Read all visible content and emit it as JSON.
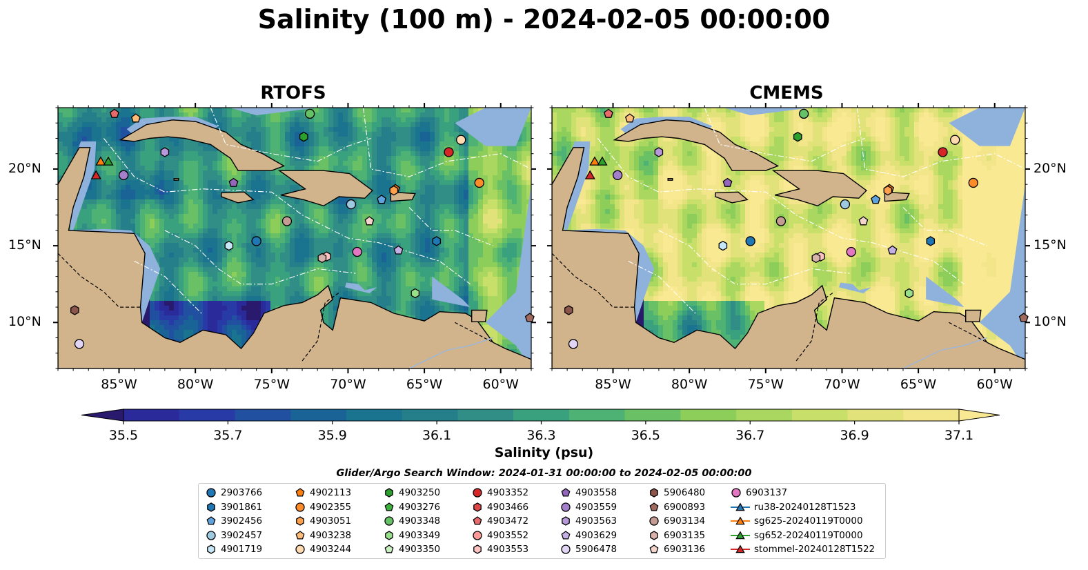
{
  "title": "Salinity (100 m) - 2024-02-05 00:00:00",
  "panels": [
    {
      "title": "RTOFS",
      "field": "rtofs"
    },
    {
      "title": "CMEMS",
      "field": "cmems"
    }
  ],
  "colors": {
    "land": "#d2b48c",
    "shelf": "#8fb2dd"
  },
  "chart_data": {
    "type": "heatmap",
    "lon_range": [
      -89.0,
      -58.0
    ],
    "lat_range": [
      7.0,
      24.0
    ],
    "x_ticks": [
      "85°W",
      "80°W",
      "75°W",
      "70°W",
      "65°W",
      "60°W"
    ],
    "x_tick_values": [
      -85,
      -80,
      -75,
      -70,
      -65,
      -60
    ],
    "y_ticks": [
      "20°N",
      "15°N",
      "10°N"
    ],
    "y_tick_values": [
      20,
      15,
      10
    ],
    "colorbar": {
      "label": "Salinity (psu)",
      "min": 35.5,
      "max": 37.1,
      "step": 0.1,
      "ticks": [
        "35.5",
        "35.7",
        "35.9",
        "36.1",
        "36.3",
        "36.5",
        "36.7",
        "36.9",
        "37.1"
      ],
      "colors": [
        "#2a1a6e",
        "#2b2a9a",
        "#283aa6",
        "#20509f",
        "#1a6396",
        "#1a748f",
        "#257f8a",
        "#308e86",
        "#3aa17f",
        "#4db273",
        "#6ac165",
        "#8dcd5a",
        "#aad75f",
        "#c8e06a",
        "#e1e37a",
        "#f3e58a",
        "#fae993"
      ]
    },
    "rtofs": {
      "mean_salinity": 36.2
    },
    "cmems": {
      "mean_salinity": 36.85
    }
  },
  "search_window": "Glider/Argo Search Window: 2024-01-31 00:00:00 to 2024-02-05 00:00:00",
  "legend": [
    {
      "label": "2903766",
      "color": "#1f77b4",
      "marker": "circle"
    },
    {
      "label": "3901861",
      "color": "#1f77b4",
      "marker": "hexagon"
    },
    {
      "label": "3902456",
      "color": "#5fa2dd",
      "marker": "pentagon"
    },
    {
      "label": "3902457",
      "color": "#9ecae1",
      "marker": "circle"
    },
    {
      "label": "4901719",
      "color": "#c6e7f7",
      "marker": "hexagon"
    },
    {
      "label": "4902113",
      "color": "#ff7f0e",
      "marker": "pentagon"
    },
    {
      "label": "4902355",
      "color": "#ff8c2a",
      "marker": "circle"
    },
    {
      "label": "4903051",
      "color": "#ffa04d",
      "marker": "hexagon"
    },
    {
      "label": "4903238",
      "color": "#ffbb78",
      "marker": "pentagon"
    },
    {
      "label": "4903244",
      "color": "#ffd9b0",
      "marker": "circle"
    },
    {
      "label": "4903250",
      "color": "#2ca02c",
      "marker": "hexagon"
    },
    {
      "label": "4903276",
      "color": "#3cb13c",
      "marker": "pentagon"
    },
    {
      "label": "4903348",
      "color": "#66c266",
      "marker": "circle"
    },
    {
      "label": "4903349",
      "color": "#98df8a",
      "marker": "hexagon"
    },
    {
      "label": "4903350",
      "color": "#c7f0c0",
      "marker": "pentagon"
    },
    {
      "label": "4903352",
      "color": "#d62728",
      "marker": "circle"
    },
    {
      "label": "4903466",
      "color": "#e04848",
      "marker": "hexagon"
    },
    {
      "label": "4903472",
      "color": "#e86a6a",
      "marker": "pentagon"
    },
    {
      "label": "4903552",
      "color": "#ff9896",
      "marker": "circle"
    },
    {
      "label": "4903553",
      "color": "#ffc4c2",
      "marker": "hexagon"
    },
    {
      "label": "4903558",
      "color": "#9467bd",
      "marker": "pentagon"
    },
    {
      "label": "4903559",
      "color": "#a47fcb",
      "marker": "circle"
    },
    {
      "label": "4903563",
      "color": "#b798d8",
      "marker": "hexagon"
    },
    {
      "label": "4903629",
      "color": "#c5b0e6",
      "marker": "pentagon"
    },
    {
      "label": "5906478",
      "color": "#e2d4f5",
      "marker": "circle"
    },
    {
      "label": "5906480",
      "color": "#8c564b",
      "marker": "hexagon"
    },
    {
      "label": "6900893",
      "color": "#a06a5e",
      "marker": "pentagon"
    },
    {
      "label": "6903134",
      "color": "#c49c94",
      "marker": "circle"
    },
    {
      "label": "6903135",
      "color": "#d8b3ab",
      "marker": "hexagon"
    },
    {
      "label": "6903136",
      "color": "#f2d4cc",
      "marker": "pentagon"
    },
    {
      "label": "6903137",
      "color": "#e377c2",
      "marker": "circle"
    },
    {
      "label": "ru38-20240128T1523",
      "color": "#1f77b4",
      "marker": "triangle-line"
    },
    {
      "label": "sg625-20240119T0000",
      "color": "#ff7f0e",
      "marker": "triangle-line"
    },
    {
      "label": "sg652-20240119T0000",
      "color": "#2ca02c",
      "marker": "triangle-line"
    },
    {
      "label": "stommel-20240128T1522",
      "color": "#d62728",
      "marker": "triangle-line"
    }
  ],
  "floats": [
    {
      "id": "2903766",
      "lon": -76.0,
      "lat": 15.3
    },
    {
      "id": "3901861",
      "lon": -64.2,
      "lat": 15.3
    },
    {
      "id": "3902456",
      "lon": -67.8,
      "lat": 18.0
    },
    {
      "id": "3902457",
      "lon": -69.8,
      "lat": 17.7
    },
    {
      "id": "4901719",
      "lon": -77.8,
      "lat": 15.0
    },
    {
      "id": "4902113",
      "lon": -66.9,
      "lat": 18.7
    },
    {
      "id": "4902355",
      "lon": -61.4,
      "lat": 19.1
    },
    {
      "id": "4903051",
      "lon": -67.0,
      "lat": 18.6
    },
    {
      "id": "4903244",
      "lon": -62.6,
      "lat": 21.9
    },
    {
      "id": "4903250",
      "lon": -72.9,
      "lat": 22.1
    },
    {
      "id": "4903348",
      "lon": -72.5,
      "lat": 23.6
    },
    {
      "id": "4903349",
      "lon": -65.6,
      "lat": 11.9
    },
    {
      "id": "4903352",
      "lon": -63.4,
      "lat": 21.1
    },
    {
      "id": "4903472",
      "lon": -85.3,
      "lat": 23.6
    },
    {
      "id": "4903553",
      "lon": -71.4,
      "lat": 14.3
    },
    {
      "id": "4903558",
      "lon": -77.5,
      "lat": 19.1
    },
    {
      "id": "4903559",
      "lon": -84.7,
      "lat": 19.6
    },
    {
      "id": "4903563",
      "lon": -82.0,
      "lat": 21.1
    },
    {
      "id": "4903629",
      "lon": -66.7,
      "lat": 14.7
    },
    {
      "id": "5906478",
      "lon": -87.6,
      "lat": 8.6
    },
    {
      "id": "5906480",
      "lon": -87.9,
      "lat": 10.8
    },
    {
      "id": "6900893",
      "lon": -58.1,
      "lat": 10.3
    },
    {
      "id": "6903134",
      "lon": -74.0,
      "lat": 16.6
    },
    {
      "id": "6903135",
      "lon": -71.7,
      "lat": 14.2
    },
    {
      "id": "6903136",
      "lon": -68.6,
      "lat": 16.6
    },
    {
      "id": "6903137",
      "lon": -69.4,
      "lat": 14.6
    },
    {
      "id": "4903238",
      "lon": -83.9,
      "lat": 23.3
    }
  ],
  "gliders": [
    {
      "id": "sg625-20240119T0000",
      "lon": -86.2,
      "lat": 20.5
    },
    {
      "id": "sg652-20240119T0000",
      "lon": -85.7,
      "lat": 20.5
    },
    {
      "id": "stommel-20240128T1522",
      "lon": -86.5,
      "lat": 19.6
    }
  ]
}
